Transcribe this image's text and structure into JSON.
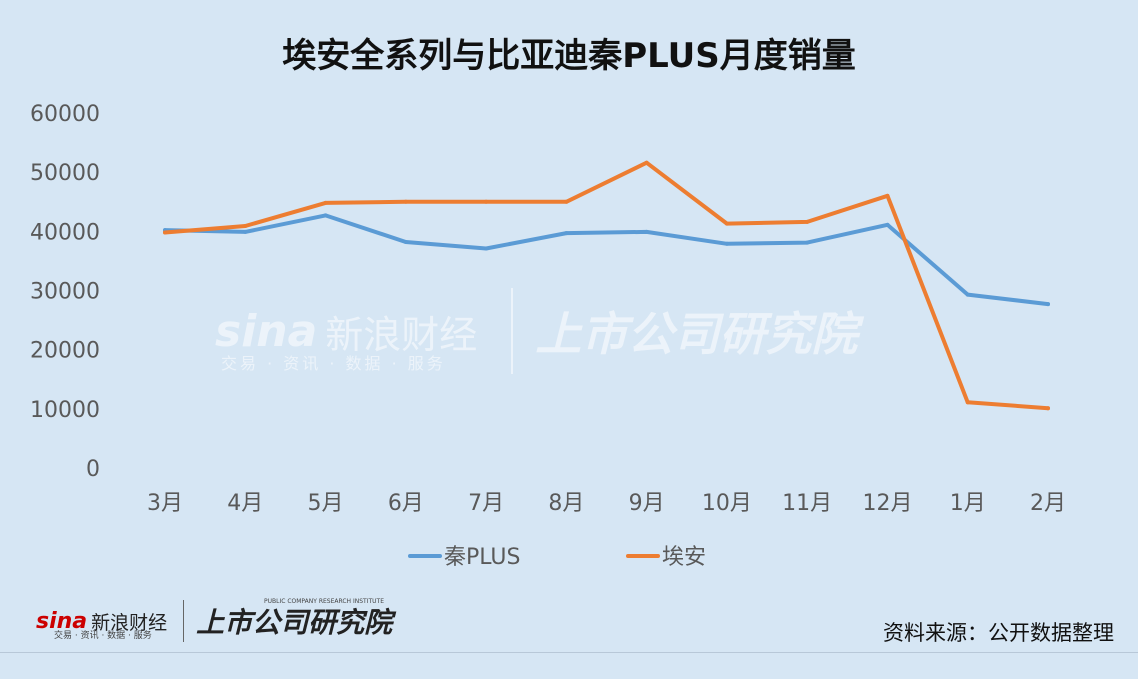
{
  "title": "埃安全系列与比亚迪秦PLUS月度销量",
  "watermark": {
    "brand": "sina",
    "brand_cn": "新浪财经",
    "sub": "交易 · 资讯 · 数据 · 服务",
    "institute": "上市公司研究院"
  },
  "footer": {
    "brand": "sina",
    "brand_cn": "新浪财经",
    "sub": "交易 · 资讯 · 数据 · 服务",
    "institute": "上市公司研究院",
    "institute_en": "PUBLIC COMPANY RESEARCH INSTITUTE",
    "source": "资料来源：公开数据整理"
  },
  "chart_data": {
    "type": "line",
    "title": "埃安全系列与比亚迪秦PLUS月度销量",
    "categories": [
      "3月",
      "4月",
      "5月",
      "6月",
      "7月",
      "8月",
      "9月",
      "10月",
      "11月",
      "12月",
      "1月",
      "2月"
    ],
    "series": [
      {
        "name": "秦PLUS",
        "color": "#5b9bd5",
        "values": [
          40200,
          39900,
          42700,
          38200,
          37100,
          39700,
          39900,
          37900,
          38100,
          41100,
          29300,
          27700
        ]
      },
      {
        "name": "埃安",
        "color": "#ed7d31",
        "values": [
          39800,
          40900,
          44800,
          45000,
          45000,
          45000,
          51600,
          41300,
          41600,
          46000,
          11100,
          10100
        ]
      }
    ],
    "yticks": [
      0,
      10000,
      20000,
      30000,
      40000,
      50000,
      60000
    ],
    "ylim": [
      0,
      60000
    ],
    "grid": false,
    "legend_position": "bottom"
  }
}
